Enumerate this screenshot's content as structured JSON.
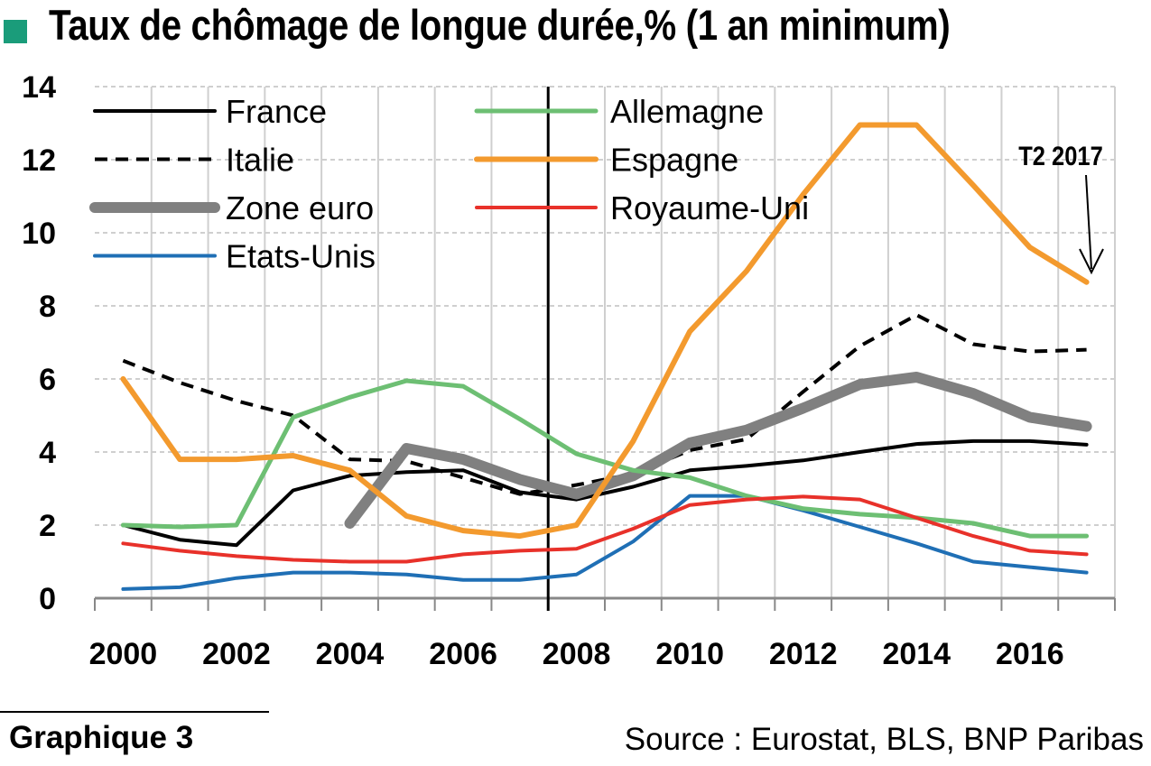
{
  "title": "Taux de chômage de longue durée,% (1 an minimum)",
  "footer": {
    "label": "Graphique 3",
    "source": "Source : Eurostat, BLS, BNP Paribas"
  },
  "colors": {
    "title_marker": "#1a9c7a",
    "grid": "#cfcfcf",
    "axis": "#000000"
  },
  "chart_data": {
    "type": "line",
    "x_ticks": [
      "2000",
      "2002",
      "2004",
      "2006",
      "2008",
      "2010",
      "2012",
      "2014",
      "2016"
    ],
    "xlim": [
      2000,
      2018
    ],
    "y_ticks": [
      "0",
      "2",
      "4",
      "6",
      "8",
      "10",
      "12",
      "14"
    ],
    "ylim": [
      0,
      14
    ],
    "grid": true,
    "vertical_marker_x": 2008,
    "annotation": {
      "text": "T2 2017",
      "x": 2017.5,
      "y": 8.6
    },
    "legend_position": "top-left",
    "series": [
      {
        "name": "France",
        "color": "#000000",
        "width": 4,
        "dash": "",
        "points": [
          [
            2000.5,
            2.0
          ],
          [
            2001.5,
            1.6
          ],
          [
            2002.5,
            1.45
          ],
          [
            2003.5,
            2.95
          ],
          [
            2004.5,
            3.35
          ],
          [
            2005.5,
            3.45
          ],
          [
            2006.5,
            3.5
          ],
          [
            2007.5,
            2.9
          ],
          [
            2008.5,
            2.7
          ],
          [
            2009.5,
            3.05
          ],
          [
            2010.5,
            3.5
          ],
          [
            2011.5,
            3.62
          ],
          [
            2012.5,
            3.77
          ],
          [
            2013.5,
            4.0
          ],
          [
            2014.5,
            4.22
          ],
          [
            2015.5,
            4.3
          ],
          [
            2016.5,
            4.3
          ],
          [
            2017.5,
            4.2
          ]
        ]
      },
      {
        "name": "Italie",
        "color": "#000000",
        "width": 4,
        "dash": "14,9",
        "points": [
          [
            2000.5,
            6.5
          ],
          [
            2001.5,
            5.9
          ],
          [
            2002.5,
            5.4
          ],
          [
            2003.5,
            5.0
          ],
          [
            2004.5,
            3.8
          ],
          [
            2005.5,
            3.75
          ],
          [
            2006.5,
            3.3
          ],
          [
            2007.5,
            2.85
          ],
          [
            2008.5,
            3.1
          ],
          [
            2009.5,
            3.4
          ],
          [
            2010.5,
            4.05
          ],
          [
            2011.5,
            4.35
          ],
          [
            2012.5,
            5.65
          ],
          [
            2013.5,
            6.9
          ],
          [
            2014.5,
            7.75
          ],
          [
            2015.5,
            6.95
          ],
          [
            2016.5,
            6.75
          ],
          [
            2017.5,
            6.8
          ]
        ]
      },
      {
        "name": "Zone euro",
        "color": "#808080",
        "width": 12,
        "dash": "",
        "points": [
          [
            2004.5,
            2.05
          ],
          [
            2005.5,
            4.1
          ],
          [
            2006.5,
            3.8
          ],
          [
            2007.5,
            3.25
          ],
          [
            2008.5,
            2.85
          ],
          [
            2009.5,
            3.35
          ],
          [
            2010.5,
            4.25
          ],
          [
            2011.5,
            4.6
          ],
          [
            2012.5,
            5.2
          ],
          [
            2013.5,
            5.85
          ],
          [
            2014.5,
            6.05
          ],
          [
            2015.5,
            5.6
          ],
          [
            2016.5,
            4.95
          ],
          [
            2017.5,
            4.7
          ]
        ]
      },
      {
        "name": "Etats-Unis",
        "color": "#1f6fb5",
        "width": 4,
        "dash": "",
        "points": [
          [
            2000.5,
            0.25
          ],
          [
            2001.5,
            0.3
          ],
          [
            2002.5,
            0.55
          ],
          [
            2003.5,
            0.7
          ],
          [
            2004.5,
            0.7
          ],
          [
            2005.5,
            0.65
          ],
          [
            2006.5,
            0.5
          ],
          [
            2007.5,
            0.5
          ],
          [
            2008.5,
            0.65
          ],
          [
            2009.5,
            1.55
          ],
          [
            2010.5,
            2.8
          ],
          [
            2011.5,
            2.8
          ],
          [
            2012.5,
            2.4
          ],
          [
            2013.5,
            1.95
          ],
          [
            2014.5,
            1.5
          ],
          [
            2015.5,
            1.0
          ],
          [
            2016.5,
            0.85
          ],
          [
            2017.5,
            0.7
          ]
        ]
      },
      {
        "name": "Allemagne",
        "color": "#6dbf73",
        "width": 5,
        "dash": "",
        "points": [
          [
            2000.5,
            2.0
          ],
          [
            2001.5,
            1.95
          ],
          [
            2002.5,
            2.0
          ],
          [
            2003.5,
            4.95
          ],
          [
            2004.5,
            5.5
          ],
          [
            2005.5,
            5.95
          ],
          [
            2006.5,
            5.8
          ],
          [
            2007.5,
            4.9
          ],
          [
            2008.5,
            3.95
          ],
          [
            2009.5,
            3.5
          ],
          [
            2010.5,
            3.3
          ],
          [
            2011.5,
            2.8
          ],
          [
            2012.5,
            2.45
          ],
          [
            2013.5,
            2.3
          ],
          [
            2014.5,
            2.2
          ],
          [
            2015.5,
            2.05
          ],
          [
            2016.5,
            1.7
          ],
          [
            2017.5,
            1.7
          ]
        ]
      },
      {
        "name": "Espagne",
        "color": "#f39a2e",
        "width": 6,
        "dash": "",
        "points": [
          [
            2000.5,
            6.0
          ],
          [
            2001.5,
            3.8
          ],
          [
            2002.5,
            3.8
          ],
          [
            2003.5,
            3.9
          ],
          [
            2004.5,
            3.5
          ],
          [
            2005.5,
            2.25
          ],
          [
            2006.5,
            1.85
          ],
          [
            2007.5,
            1.7
          ],
          [
            2008.5,
            2.0
          ],
          [
            2009.5,
            4.3
          ],
          [
            2010.5,
            7.3
          ],
          [
            2011.5,
            8.95
          ],
          [
            2012.5,
            11.05
          ],
          [
            2013.5,
            12.95
          ],
          [
            2014.5,
            12.95
          ],
          [
            2015.5,
            11.3
          ],
          [
            2016.5,
            9.6
          ],
          [
            2017.5,
            8.65
          ]
        ]
      },
      {
        "name": "Royaume-Uni",
        "color": "#e8312a",
        "width": 4,
        "dash": "",
        "points": [
          [
            2000.5,
            1.5
          ],
          [
            2001.5,
            1.3
          ],
          [
            2002.5,
            1.15
          ],
          [
            2003.5,
            1.05
          ],
          [
            2004.5,
            1.0
          ],
          [
            2005.5,
            1.0
          ],
          [
            2006.5,
            1.2
          ],
          [
            2007.5,
            1.3
          ],
          [
            2008.5,
            1.35
          ],
          [
            2009.5,
            1.9
          ],
          [
            2010.5,
            2.55
          ],
          [
            2011.5,
            2.7
          ],
          [
            2012.5,
            2.78
          ],
          [
            2013.5,
            2.7
          ],
          [
            2014.5,
            2.2
          ],
          [
            2015.5,
            1.7
          ],
          [
            2016.5,
            1.3
          ],
          [
            2017.5,
            1.2
          ]
        ]
      }
    ]
  }
}
